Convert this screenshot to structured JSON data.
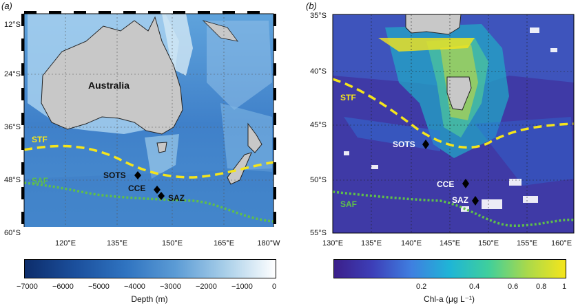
{
  "panel_a": {
    "letter": "(a)",
    "lat_labels": [
      "12°S",
      "24°S",
      "36°S",
      "48°S",
      "60°S"
    ],
    "lon_labels": [
      "120°E",
      "135°E",
      "150°E",
      "165°E",
      "180°W"
    ],
    "landmass_label": "Australia",
    "front_labels": {
      "stf": "STF",
      "saf": "SAF"
    },
    "stations": [
      "SOTS",
      "CCE",
      "SAZ"
    ],
    "colorbar": {
      "ticks": [
        "−7000",
        "−6000",
        "−5000",
        "−4000",
        "−3000",
        "−2000",
        "−1000",
        "0"
      ],
      "title": "Depth (m)",
      "colors": [
        "#0d2d6b",
        "#1b4f9c",
        "#2f73c0",
        "#5b9bd5",
        "#a9cfe9",
        "#ffffff"
      ]
    }
  },
  "panel_b": {
    "letter": "(b)",
    "lat_labels": [
      "35°S",
      "40°S",
      "45°S",
      "50°S",
      "55°S"
    ],
    "lon_labels": [
      "130°E",
      "135°E",
      "140°E",
      "145°E",
      "150°E",
      "155°E",
      "160°E"
    ],
    "front_labels": {
      "stf": "STF",
      "saf": "SAF"
    },
    "stations": [
      "SOTS",
      "CCE",
      "SAZ"
    ],
    "colorbar": {
      "ticks": [
        "0.2",
        "0.4",
        "0.6",
        "0.8",
        "1"
      ],
      "title": "Chl-a (μg L⁻¹)",
      "colors": [
        "#3b1f8a",
        "#3d3fb8",
        "#3f7fe0",
        "#1fb5d6",
        "#3fcf9c",
        "#a9d94b",
        "#f5e51b"
      ]
    }
  },
  "colors": {
    "stf_line": "#f5e51b",
    "saf_line": "#5fbf4a",
    "land": "#c8c8c8"
  }
}
